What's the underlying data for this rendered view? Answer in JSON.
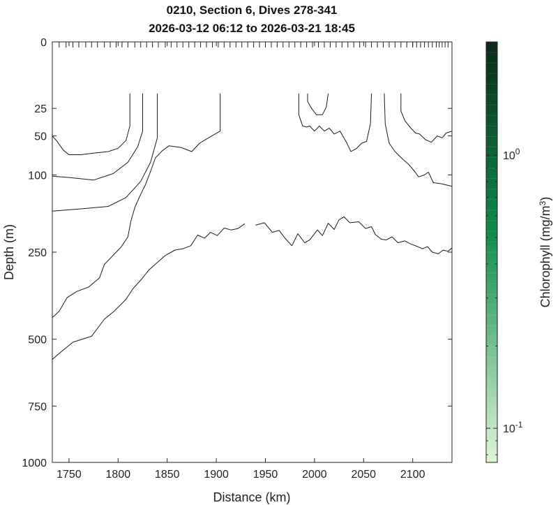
{
  "chart_data": {
    "type": "contour",
    "title_line1": "0210, Section 6, Dives 278-341",
    "title_line2": "2026-03-12 06:12 to 2026-03-21 18:45",
    "xlabel": "Distance (km)",
    "ylabel": "Depth (m)",
    "xlim": [
      1733,
      2140
    ],
    "ylim": [
      0,
      1000
    ],
    "y_scale": "sqrt",
    "x_ticks": [
      1750,
      1800,
      1850,
      1900,
      1950,
      2000,
      2050,
      2100
    ],
    "x_tick_labels": [
      "1750",
      "1800",
      "1850",
      "1900",
      "1950",
      "2000",
      "2050",
      "2100"
    ],
    "y_ticks": [
      0,
      25,
      50,
      100,
      250,
      500,
      750,
      1000
    ],
    "y_tick_labels": [
      "0",
      "25",
      "50",
      "100",
      "250",
      "500",
      "750",
      "1000"
    ],
    "dive_positions_km": [
      1740,
      1747,
      1754,
      1760,
      1767,
      1773,
      1779,
      1786,
      1792,
      1798,
      1804,
      1810,
      1817,
      1823,
      1829,
      1835,
      1841,
      1848,
      1854,
      1860,
      1866,
      1872,
      1878,
      1884,
      1890,
      1896,
      1902,
      1908,
      1914,
      1920,
      1926,
      1932,
      1938,
      1944,
      1950,
      1956,
      1962,
      1968,
      1974,
      1980,
      1986,
      1992,
      1998,
      2004,
      2010,
      2016,
      2022,
      2028,
      2034,
      2040,
      2046,
      2052,
      2058,
      2064,
      2070,
      2076,
      2082,
      2088,
      2094,
      2100,
      2104,
      2108,
      2112,
      2116,
      2120,
      2124,
      2127,
      2130,
      2133,
      2136
    ],
    "colorbar": {
      "label": "Chlorophyll (mg/m",
      "label_sup": "3",
      "label_close": ")",
      "scale": "log",
      "range": [
        0.075,
        2.6
      ],
      "tick_values": [
        0.1,
        1
      ],
      "tick_base": "10",
      "tick_exponents": [
        "-1",
        "0"
      ],
      "color_low": "#dff5d8",
      "color_mid": "#0f8a4a",
      "color_high": "#0b2a1a"
    },
    "contours": [
      {
        "name": "c1",
        "points": [
          [
            1812,
            15
          ],
          [
            1812,
            40
          ],
          [
            1808,
            55
          ],
          [
            1800,
            64
          ],
          [
            1790,
            68
          ],
          [
            1775,
            70
          ],
          [
            1762,
            72
          ],
          [
            1750,
            72
          ],
          [
            1744,
            66
          ],
          [
            1738,
            56
          ],
          [
            1733,
            50
          ]
        ]
      },
      {
        "name": "c2",
        "points": [
          [
            1825,
            15
          ],
          [
            1825,
            45
          ],
          [
            1820,
            62
          ],
          [
            1810,
            82
          ],
          [
            1795,
            98
          ],
          [
            1775,
            108
          ],
          [
            1750,
            104
          ],
          [
            1733,
            102
          ]
        ]
      },
      {
        "name": "c3",
        "points": [
          [
            1840,
            15
          ],
          [
            1840,
            52
          ],
          [
            1833,
            82
          ],
          [
            1823,
            110
          ],
          [
            1808,
            137
          ],
          [
            1790,
            153
          ],
          [
            1760,
            158
          ],
          [
            1733,
            162
          ]
        ]
      },
      {
        "name": "c4",
        "points": [
          [
            1904,
            15
          ],
          [
            1904,
            45
          ],
          [
            1892,
            52
          ],
          [
            1883,
            58
          ],
          [
            1875,
            68
          ],
          [
            1864,
            63
          ],
          [
            1852,
            61
          ],
          [
            1845,
            67
          ],
          [
            1838,
            76
          ],
          [
            1833,
            95
          ],
          [
            1828,
            115
          ],
          [
            1822,
            135
          ],
          [
            1817,
            155
          ],
          [
            1813,
            182
          ],
          [
            1810,
            215
          ],
          [
            1803,
            238
          ],
          [
            1798,
            250
          ],
          [
            1792,
            265
          ],
          [
            1786,
            280
          ],
          [
            1781,
            315
          ],
          [
            1770,
            340
          ],
          [
            1758,
            352
          ],
          [
            1748,
            370
          ],
          [
            1740,
            410
          ],
          [
            1733,
            430
          ]
        ]
      },
      {
        "name": "c5",
        "points": [
          [
            1929,
            187
          ],
          [
            1922,
            197
          ],
          [
            1915,
            200
          ],
          [
            1908,
            196
          ],
          [
            1901,
            212
          ],
          [
            1894,
            205
          ],
          [
            1888,
            218
          ],
          [
            1881,
            211
          ],
          [
            1874,
            235
          ],
          [
            1866,
            242
          ],
          [
            1858,
            245
          ],
          [
            1848,
            258
          ],
          [
            1840,
            275
          ],
          [
            1831,
            295
          ],
          [
            1824,
            318
          ],
          [
            1815,
            345
          ],
          [
            1808,
            375
          ],
          [
            1796,
            410
          ],
          [
            1786,
            435
          ],
          [
            1773,
            490
          ],
          [
            1754,
            510
          ],
          [
            1742,
            543
          ],
          [
            1733,
            570
          ]
        ]
      },
      {
        "name": "c6",
        "points": [
          [
            1940,
            190
          ],
          [
            1949,
            185
          ],
          [
            1957,
            205
          ],
          [
            1964,
            201
          ],
          [
            1970,
            218
          ],
          [
            1977,
            235
          ],
          [
            1983,
            208
          ],
          [
            1990,
            228
          ],
          [
            1995,
            222
          ],
          [
            2003,
            200
          ],
          [
            2008,
            212
          ],
          [
            2014,
            186
          ],
          [
            2020,
            199
          ],
          [
            2025,
            179
          ],
          [
            2030,
            173
          ],
          [
            2036,
            185
          ],
          [
            2045,
            183
          ],
          [
            2052,
            197
          ],
          [
            2058,
            193
          ],
          [
            2062,
            210
          ],
          [
            2068,
            220
          ],
          [
            2073,
            222
          ],
          [
            2079,
            215
          ],
          [
            2085,
            228
          ],
          [
            2092,
            224
          ],
          [
            2098,
            231
          ],
          [
            2104,
            236
          ],
          [
            2110,
            242
          ],
          [
            2115,
            237
          ],
          [
            2120,
            250
          ],
          [
            2126,
            254
          ],
          [
            2131,
            245
          ],
          [
            2136,
            248
          ],
          [
            2140,
            240
          ]
        ]
      },
      {
        "name": "c7",
        "points": [
          [
            1993,
            15
          ],
          [
            1993,
            20
          ],
          [
            1997,
            25
          ],
          [
            2002,
            30
          ],
          [
            2008,
            30
          ],
          [
            2012,
            24
          ],
          [
            2014,
            15
          ]
        ]
      },
      {
        "name": "c8",
        "points": [
          [
            1984,
            15
          ],
          [
            1984,
            30
          ],
          [
            1988,
            40
          ],
          [
            1992,
            41
          ],
          [
            1995,
            40
          ],
          [
            2000,
            45
          ],
          [
            2005,
            40
          ],
          [
            2010,
            45
          ],
          [
            2015,
            42
          ],
          [
            2020,
            48
          ],
          [
            2026,
            45
          ],
          [
            2033,
            58
          ],
          [
            2037,
            68
          ],
          [
            2043,
            64
          ],
          [
            2048,
            58
          ],
          [
            2053,
            56
          ],
          [
            2057,
            38
          ],
          [
            2058,
            15
          ]
        ]
      },
      {
        "name": "c9",
        "points": [
          [
            2071,
            15
          ],
          [
            2072,
            38
          ],
          [
            2076,
            58
          ],
          [
            2082,
            68
          ],
          [
            2090,
            78
          ],
          [
            2096,
            85
          ],
          [
            2102,
            95
          ],
          [
            2106,
            103
          ],
          [
            2112,
            100
          ],
          [
            2116,
            96
          ],
          [
            2121,
            112
          ],
          [
            2130,
            114
          ],
          [
            2140,
            118
          ]
        ]
      },
      {
        "name": "c10",
        "points": [
          [
            2088,
            15
          ],
          [
            2088,
            27
          ],
          [
            2092,
            35
          ],
          [
            2098,
            42
          ],
          [
            2103,
            47
          ],
          [
            2107,
            48
          ],
          [
            2113,
            54
          ],
          [
            2119,
            57
          ],
          [
            2125,
            50
          ],
          [
            2130,
            52
          ],
          [
            2134,
            47
          ],
          [
            2140,
            45
          ]
        ]
      }
    ]
  }
}
